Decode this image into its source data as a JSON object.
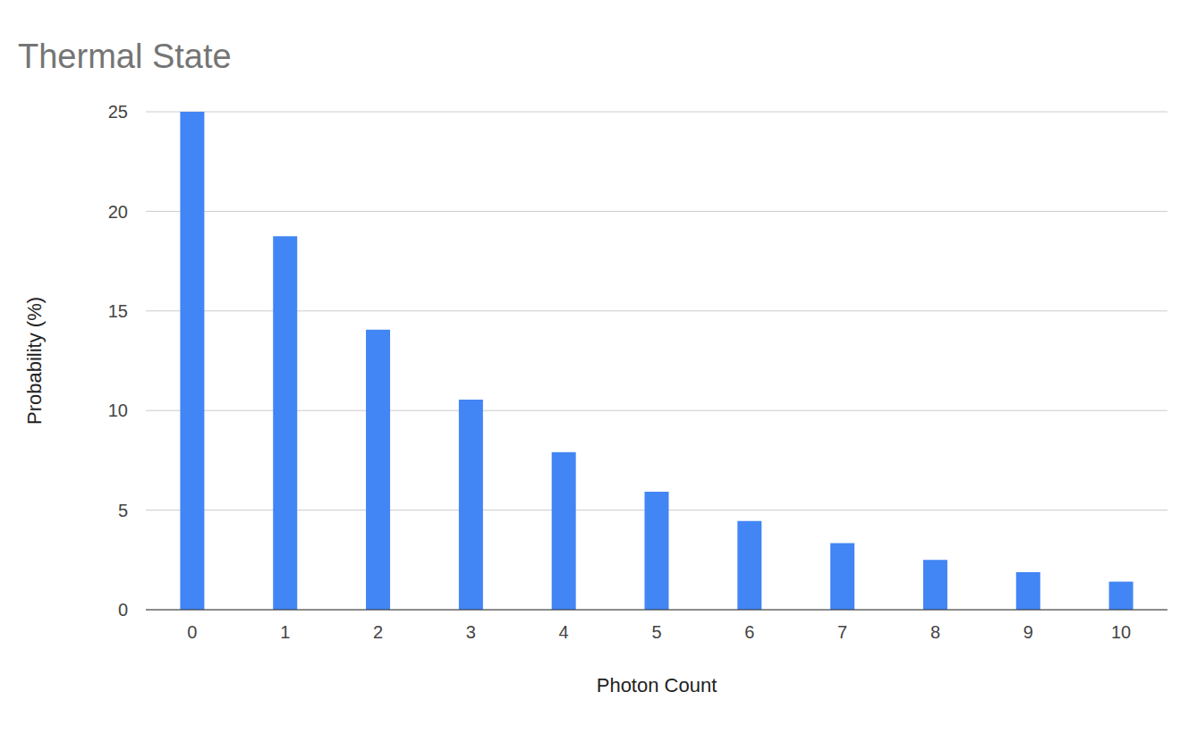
{
  "chart_data": {
    "type": "bar",
    "title": "Thermal State",
    "x_label": "Photon Count",
    "y_label": "Probability (%)",
    "categories": [
      "0",
      "1",
      "2",
      "3",
      "4",
      "5",
      "6",
      "7",
      "8",
      "9",
      "10"
    ],
    "values": [
      25,
      18.75,
      14.06,
      10.55,
      7.91,
      5.93,
      4.45,
      3.34,
      2.5,
      1.88,
      1.41
    ],
    "color": "#4285f4",
    "ylim": [
      0,
      25
    ],
    "yticks": [
      0,
      5,
      10,
      15,
      20,
      25
    ],
    "grid": true
  }
}
